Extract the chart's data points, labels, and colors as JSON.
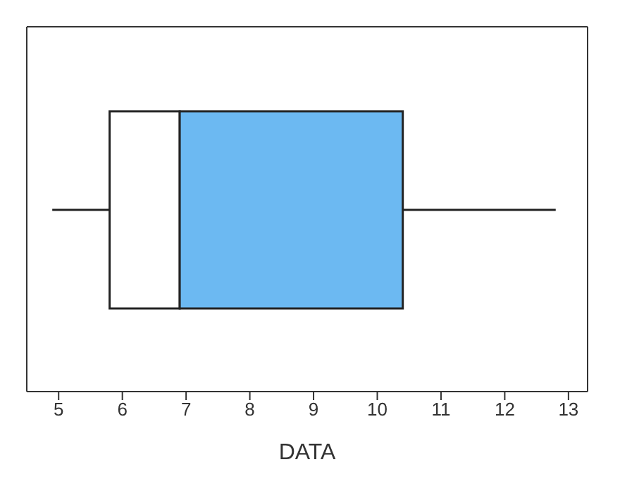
{
  "chart_data": {
    "type": "box",
    "orientation": "horizontal",
    "xlabel": "DATA",
    "categories": [
      null
    ],
    "series": [
      {
        "color": "#6cb9f2",
        "boxes": [
          {
            "low": 4.9,
            "q1": 5.8,
            "median": 6.9,
            "q3": 10.4,
            "high": 12.8
          }
        ]
      }
    ],
    "xlim": [
      4.5,
      13.3
    ],
    "xticks": [
      5,
      6,
      7,
      8,
      9,
      10,
      11,
      12,
      13
    ],
    "tick_labels": "x"
  }
}
